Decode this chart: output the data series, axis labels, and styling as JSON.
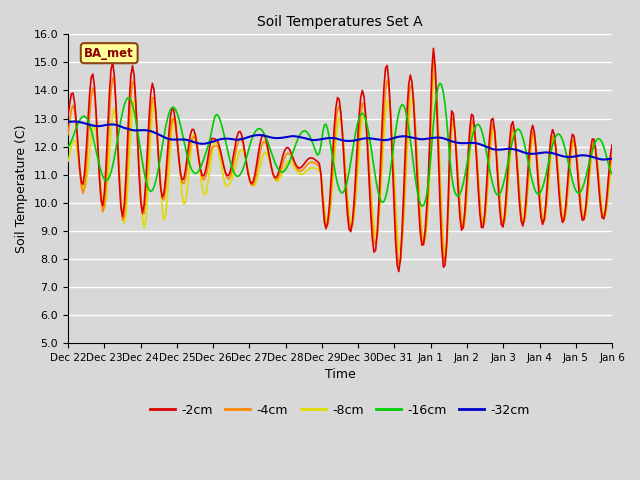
{
  "title": "Soil Temperatures Set A",
  "xlabel": "Time",
  "ylabel": "Soil Temperature (C)",
  "ylim": [
    5.0,
    16.0
  ],
  "yticks": [
    5.0,
    6.0,
    7.0,
    8.0,
    9.0,
    10.0,
    11.0,
    12.0,
    13.0,
    14.0,
    15.0,
    16.0
  ],
  "bg_color": "#d8d8d8",
  "plot_bg_color": "#d8d8d8",
  "grid_color": "#ffffff",
  "label_box_text": "BA_met",
  "label_box_facecolor": "#ffff99",
  "label_box_edgecolor": "#8b4513",
  "label_box_textcolor": "#8b0000",
  "series_colors": {
    "-2cm": "#dd0000",
    "-4cm": "#ff8800",
    "-8cm": "#dddd00",
    "-16cm": "#00cc00",
    "-32cm": "#0000cc"
  },
  "xtick_labels": [
    "Dec 22",
    "Dec 23",
    "Dec 24",
    "Dec 25",
    "Dec 26",
    "Dec 27",
    "Dec 28",
    "Dec 29",
    "Dec 30",
    "Dec 31",
    "Jan 1",
    "Jan 2",
    "Jan 3",
    "Jan 4",
    "Jan 5",
    "Jan 6"
  ],
  "legend_entries": [
    "-2cm",
    "-4cm",
    "-8cm",
    "-16cm",
    "-32cm"
  ]
}
